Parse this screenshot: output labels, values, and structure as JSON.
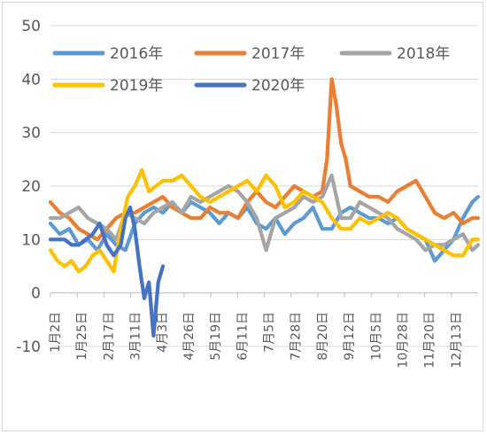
{
  "chart_data": {
    "type": "line",
    "title": "",
    "xlabel": "",
    "ylabel": "",
    "ylim": [
      -10,
      50
    ],
    "yticks": [
      -10,
      0,
      10,
      20,
      30,
      40,
      50
    ],
    "grid": "horizontal",
    "legend_position": "top",
    "x_ticks": [
      "1月2日",
      "1月25日",
      "2月17日",
      "3月11日",
      "4月3日",
      "4月26日",
      "5月19日",
      "6月11日",
      "7月5日",
      "7月28日",
      "8月20日",
      "9月12日",
      "10月5日",
      "10月28日",
      "11月20日",
      "12月13日"
    ],
    "x_range": [
      0,
      365
    ],
    "series": [
      {
        "name": "2016年",
        "color": "#5B9BD5",
        "x": [
          0,
          8,
          16,
          24,
          32,
          40,
          48,
          56,
          64,
          72,
          80,
          88,
          96,
          104,
          112,
          120,
          128,
          136,
          144,
          152,
          160,
          168,
          176,
          184,
          192,
          200,
          208,
          216,
          224,
          232,
          240,
          248,
          256,
          264,
          272,
          280,
          288,
          296,
          304,
          312,
          320,
          328,
          336,
          344,
          352,
          360,
          365
        ],
        "values": [
          13,
          11,
          12,
          9,
          10,
          8,
          11,
          9,
          8,
          13,
          15,
          16,
          15,
          17,
          15,
          17,
          16,
          15,
          13,
          15,
          14,
          16,
          13,
          12,
          14,
          11,
          13,
          14,
          16,
          12,
          12,
          15,
          16,
          15,
          14,
          14,
          13,
          14,
          12,
          11,
          10,
          6,
          8,
          10,
          14,
          17,
          18
        ]
      },
      {
        "name": "2017年",
        "color": "#ED7D31",
        "x": [
          0,
          8,
          16,
          24,
          32,
          40,
          48,
          56,
          64,
          72,
          80,
          88,
          96,
          104,
          112,
          120,
          128,
          136,
          144,
          152,
          160,
          168,
          176,
          184,
          192,
          200,
          208,
          216,
          224,
          232,
          236,
          240,
          244,
          248,
          252,
          256,
          264,
          272,
          280,
          288,
          296,
          304,
          312,
          320,
          328,
          336,
          344,
          352,
          360,
          365
        ],
        "values": [
          17,
          15,
          14,
          12,
          11,
          10,
          12,
          14,
          15,
          15,
          16,
          17,
          18,
          16,
          15,
          14,
          14,
          16,
          15,
          15,
          14,
          17,
          19,
          17,
          16,
          18,
          20,
          19,
          18,
          19,
          25,
          40,
          35,
          28,
          25,
          20,
          19,
          18,
          18,
          17,
          19,
          20,
          21,
          18,
          15,
          14,
          15,
          13,
          14,
          14
        ]
      },
      {
        "name": "2018年",
        "color": "#A5A5A5",
        "x": [
          0,
          8,
          16,
          24,
          32,
          40,
          48,
          56,
          64,
          72,
          80,
          88,
          96,
          104,
          112,
          120,
          128,
          136,
          144,
          152,
          160,
          168,
          176,
          184,
          192,
          200,
          208,
          216,
          224,
          232,
          240,
          248,
          256,
          264,
          272,
          280,
          288,
          296,
          304,
          312,
          320,
          328,
          336,
          344,
          352,
          360,
          365
        ],
        "values": [
          14,
          14,
          15,
          16,
          14,
          13,
          12,
          10,
          15,
          14,
          13,
          15,
          16,
          17,
          15,
          18,
          17,
          18,
          19,
          20,
          19,
          17,
          14,
          8,
          14,
          15,
          16,
          18,
          17,
          18,
          22,
          14,
          14,
          17,
          16,
          15,
          14,
          12,
          11,
          10,
          8,
          9,
          9,
          10,
          11,
          8,
          9
        ]
      },
      {
        "name": "2019年",
        "color": "#FFC000",
        "x": [
          0,
          6,
          12,
          18,
          24,
          30,
          36,
          42,
          48,
          54,
          60,
          66,
          72,
          78,
          84,
          90,
          96,
          104,
          112,
          120,
          128,
          136,
          144,
          152,
          160,
          168,
          176,
          184,
          192,
          200,
          208,
          216,
          224,
          232,
          240,
          248,
          256,
          264,
          272,
          280,
          288,
          296,
          304,
          312,
          320,
          328,
          336,
          344,
          352,
          360,
          365
        ],
        "values": [
          8,
          6,
          5,
          6,
          4,
          5,
          7,
          8,
          6,
          4,
          12,
          18,
          20,
          23,
          19,
          20,
          21,
          21,
          22,
          20,
          18,
          17,
          18,
          19,
          20,
          21,
          19,
          22,
          20,
          16,
          17,
          19,
          18,
          17,
          14,
          12,
          12,
          14,
          13,
          14,
          15,
          14,
          12,
          11,
          10,
          9,
          8,
          7,
          7,
          10,
          10
        ]
      },
      {
        "name": "2020年",
        "color": "#4472C4",
        "x": [
          0,
          6,
          12,
          18,
          24,
          30,
          36,
          42,
          48,
          54,
          60,
          64,
          68,
          72,
          76,
          80,
          84,
          88,
          92,
          96
        ],
        "values": [
          10,
          10,
          10,
          9,
          9,
          10,
          11,
          13,
          9,
          7,
          9,
          14,
          16,
          12,
          5,
          -1,
          2,
          -8,
          2,
          5
        ]
      }
    ]
  }
}
